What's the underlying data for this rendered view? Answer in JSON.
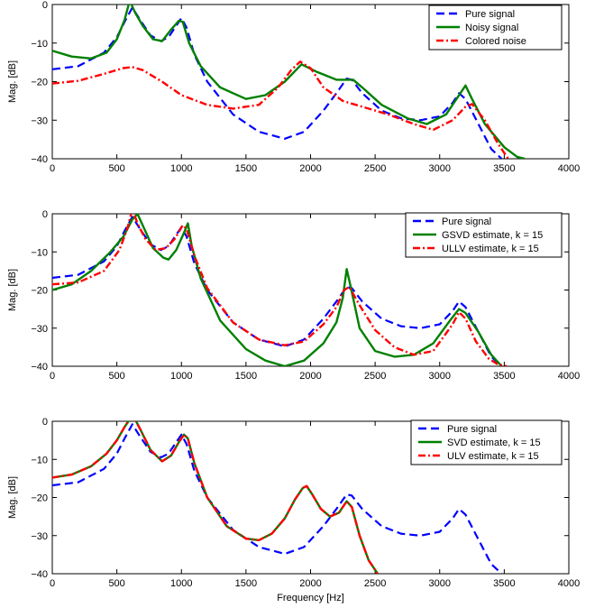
{
  "chart_data": [
    {
      "type": "line",
      "xlabel": "",
      "ylabel": "Mag. [dB]",
      "xlim": [
        0,
        4000
      ],
      "ylim": [
        -40,
        0
      ],
      "xticks": [
        0,
        500,
        1000,
        1500,
        2000,
        2500,
        3000,
        3500,
        4000
      ],
      "yticks": [
        0,
        -10,
        -20,
        -30,
        -40
      ],
      "xtick_labels": [
        "0",
        "500",
        "1000",
        "1500",
        "2000",
        "2500",
        "3000",
        "3500",
        "4000"
      ],
      "ytick_labels": [
        "0",
        "−10",
        "−20",
        "−30",
        "−40"
      ],
      "grid": false,
      "legend": "top-right",
      "series": [
        {
          "name": "Pure signal",
          "color": "#0000ff",
          "style": "dashed",
          "x": [
            0,
            200,
            400,
            500,
            560,
            620,
            680,
            760,
            840,
            900,
            960,
            1000,
            1040,
            1100,
            1200,
            1400,
            1600,
            1800,
            1950,
            2100,
            2200,
            2280,
            2320,
            2400,
            2550,
            2700,
            2850,
            3000,
            3100,
            3150,
            3200,
            3300,
            3400,
            3480
          ],
          "y": [
            -16.8,
            -16,
            -12.5,
            -8.5,
            -4.5,
            -0.8,
            -4,
            -8,
            -9.5,
            -8.5,
            -5.5,
            -3.5,
            -6,
            -13,
            -20,
            -28.5,
            -33,
            -34.8,
            -33,
            -27.5,
            -23,
            -19.2,
            -19.5,
            -23,
            -27.5,
            -29.5,
            -30,
            -29,
            -25.5,
            -23,
            -24.5,
            -31,
            -37.5,
            -40
          ]
        },
        {
          "name": "Noisy signal",
          "color": "#008000",
          "style": "solid",
          "x": [
            0,
            150,
            300,
            420,
            500,
            560,
            600,
            640,
            700,
            780,
            850,
            920,
            980,
            1010,
            1060,
            1150,
            1300,
            1500,
            1650,
            1800,
            1930,
            2050,
            2200,
            2330,
            2400,
            2550,
            2750,
            2900,
            3050,
            3150,
            3200,
            3250,
            3350,
            3500,
            3600,
            3660
          ],
          "y": [
            -12,
            -13.5,
            -14,
            -12.5,
            -9,
            -4,
            1,
            -2,
            -5.5,
            -9,
            -9.5,
            -6.5,
            -4.2,
            -4.5,
            -10,
            -16,
            -21.5,
            -24.5,
            -23.5,
            -20,
            -15.5,
            -17.5,
            -19.5,
            -19.5,
            -21.5,
            -26,
            -29.5,
            -31,
            -28.5,
            -23.5,
            -21,
            -24.5,
            -31,
            -37,
            -39.5,
            -40
          ]
        },
        {
          "name": "Colored noise",
          "color": "#ff0000",
          "style": "dashdot",
          "x": [
            0,
            200,
            400,
            550,
            620,
            700,
            850,
            1000,
            1200,
            1400,
            1600,
            1750,
            1850,
            1920,
            2000,
            2100,
            2250,
            2400,
            2600,
            2800,
            2950,
            3100,
            3200,
            3250,
            3350,
            3450,
            3530
          ],
          "y": [
            -20.5,
            -19.8,
            -18,
            -16.5,
            -16.2,
            -17,
            -20,
            -23.5,
            -26,
            -27,
            -26,
            -21.5,
            -17,
            -14.8,
            -16.5,
            -21.5,
            -25,
            -26.5,
            -28.5,
            -31,
            -32.5,
            -30,
            -26.5,
            -25.8,
            -30,
            -36,
            -40
          ]
        }
      ],
      "legend_entries": [
        "Pure signal",
        "Noisy signal",
        "Colored noise"
      ]
    },
    {
      "type": "line",
      "xlabel": "",
      "ylabel": "Mag. [dB]",
      "xlim": [
        0,
        4000
      ],
      "ylim": [
        -40,
        0
      ],
      "xticks": [
        0,
        500,
        1000,
        1500,
        2000,
        2500,
        3000,
        3500,
        4000
      ],
      "yticks": [
        0,
        -10,
        -20,
        -30,
        -40
      ],
      "xtick_labels": [
        "0",
        "500",
        "1000",
        "1500",
        "2000",
        "2500",
        "3000",
        "3500",
        "4000"
      ],
      "ytick_labels": [
        "0",
        "−10",
        "−20",
        "−30",
        "−40"
      ],
      "grid": false,
      "legend": "top-right",
      "series": [
        {
          "name": "Pure signal",
          "color": "#0000ff",
          "style": "dashed",
          "x": [
            0,
            200,
            400,
            500,
            560,
            620,
            680,
            760,
            840,
            900,
            960,
            1000,
            1040,
            1100,
            1200,
            1400,
            1600,
            1800,
            1950,
            2100,
            2200,
            2280,
            2320,
            2400,
            2550,
            2700,
            2850,
            3000,
            3100,
            3150,
            3200,
            3300,
            3400,
            3480
          ],
          "y": [
            -16.8,
            -16,
            -12.5,
            -8.5,
            -4.5,
            -0.8,
            -4,
            -8,
            -9.5,
            -8.5,
            -5.5,
            -3.5,
            -6,
            -13,
            -20,
            -28.5,
            -33,
            -34.8,
            -33,
            -27.5,
            -23,
            -19.2,
            -19.5,
            -23,
            -27.5,
            -29.5,
            -30,
            -29,
            -25.5,
            -23,
            -24.5,
            -31,
            -37.5,
            -40
          ]
        },
        {
          "name": "GSVD estimate, k = 15",
          "color": "#008000",
          "style": "solid",
          "x": [
            0,
            150,
            300,
            450,
            550,
            620,
            660,
            700,
            780,
            860,
            900,
            960,
            1020,
            1050,
            1080,
            1150,
            1300,
            1500,
            1650,
            1800,
            1950,
            2100,
            2200,
            2250,
            2280,
            2310,
            2380,
            2500,
            2650,
            2800,
            2950,
            3080,
            3150,
            3200,
            3300,
            3400,
            3480
          ],
          "y": [
            -20,
            -18.5,
            -15,
            -10,
            -6,
            -1.5,
            0,
            -3,
            -9,
            -11.5,
            -12,
            -9.5,
            -5,
            -2.5,
            -8.5,
            -17,
            -28,
            -35.5,
            -38.5,
            -40,
            -38.5,
            -34,
            -28.5,
            -22,
            -14.5,
            -19,
            -30,
            -36,
            -37.5,
            -37,
            -34,
            -28,
            -25,
            -26,
            -31,
            -37,
            -40
          ]
        },
        {
          "name": "ULLV estimate, k = 15",
          "color": "#ff0000",
          "style": "dashdot",
          "x": [
            0,
            200,
            400,
            520,
            580,
            620,
            660,
            720,
            800,
            880,
            950,
            1010,
            1040,
            1100,
            1200,
            1400,
            1600,
            1800,
            1950,
            2100,
            2200,
            2260,
            2300,
            2380,
            2500,
            2650,
            2800,
            2950,
            3100,
            3150,
            3200,
            3280,
            3380,
            3450,
            3520
          ],
          "y": [
            -18.5,
            -18,
            -15,
            -9.5,
            -4,
            1.2,
            -2.5,
            -6.5,
            -9.5,
            -9,
            -6.5,
            -3,
            -4,
            -11,
            -19.5,
            -28.5,
            -33,
            -34.5,
            -33.5,
            -29,
            -24.5,
            -20,
            -19.2,
            -24,
            -30.5,
            -35,
            -37,
            -36,
            -29,
            -25.8,
            -27.5,
            -33.5,
            -38,
            -39.5,
            -40
          ]
        }
      ],
      "legend_entries": [
        "Pure signal",
        "GSVD estimate, k = 15",
        "ULLV estimate, k = 15"
      ]
    },
    {
      "type": "line",
      "xlabel": "Frequency [Hz]",
      "ylabel": "Mag. [dB]",
      "xlim": [
        0,
        4000
      ],
      "ylim": [
        -40,
        0
      ],
      "xticks": [
        0,
        500,
        1000,
        1500,
        2000,
        2500,
        3000,
        3500,
        4000
      ],
      "yticks": [
        0,
        -10,
        -20,
        -30,
        -40
      ],
      "xtick_labels": [
        "0",
        "500",
        "1000",
        "1500",
        "2000",
        "2500",
        "3000",
        "3500",
        "4000"
      ],
      "ytick_labels": [
        "0",
        "−10",
        "−20",
        "−30",
        "−40"
      ],
      "grid": false,
      "legend": "top-right",
      "series": [
        {
          "name": "Pure signal",
          "color": "#0000ff",
          "style": "dashed",
          "x": [
            0,
            200,
            400,
            500,
            560,
            620,
            680,
            760,
            840,
            900,
            960,
            1000,
            1040,
            1100,
            1200,
            1400,
            1600,
            1800,
            1950,
            2100,
            2200,
            2280,
            2320,
            2400,
            2550,
            2700,
            2850,
            3000,
            3100,
            3150,
            3200,
            3300,
            3400,
            3480
          ],
          "y": [
            -16.8,
            -16,
            -12.5,
            -8.5,
            -4.5,
            -0.8,
            -4,
            -8,
            -9.5,
            -8.5,
            -5.5,
            -3.5,
            -6,
            -13,
            -20,
            -28.5,
            -33,
            -34.8,
            -33,
            -27.5,
            -23,
            -19.2,
            -19.5,
            -23,
            -27.5,
            -29.5,
            -30,
            -29,
            -25.5,
            -23,
            -24.5,
            -31,
            -37.5,
            -40
          ]
        },
        {
          "name": "SVD estimate, k = 15",
          "color": "#008000",
          "style": "solid",
          "x": [
            0,
            150,
            300,
            420,
            500,
            560,
            600,
            630,
            680,
            760,
            850,
            920,
            980,
            1020,
            1050,
            1100,
            1200,
            1350,
            1500,
            1600,
            1700,
            1800,
            1880,
            1940,
            1970,
            2010,
            2080,
            2150,
            2220,
            2280,
            2320,
            2380,
            2450,
            2520
          ],
          "y": [
            -14.8,
            -14,
            -11.8,
            -8.5,
            -5,
            -1.5,
            0.5,
            1.2,
            -2,
            -7.5,
            -10.5,
            -9,
            -5.5,
            -3.5,
            -4.5,
            -11,
            -20,
            -27.5,
            -30.8,
            -31.2,
            -29.5,
            -25.5,
            -20.5,
            -17.5,
            -17,
            -19,
            -23,
            -25,
            -24,
            -21,
            -22.5,
            -30,
            -36.5,
            -40
          ]
        },
        {
          "name": "ULV estimate, k = 15",
          "color": "#ff0000",
          "style": "dashdot",
          "x": [
            0,
            150,
            300,
            420,
            500,
            560,
            600,
            630,
            680,
            760,
            850,
            920,
            980,
            1020,
            1050,
            1100,
            1200,
            1350,
            1500,
            1600,
            1700,
            1800,
            1880,
            1940,
            1970,
            2010,
            2080,
            2150,
            2220,
            2280,
            2320,
            2380,
            2450,
            2520
          ],
          "y": [
            -14.8,
            -14,
            -11.8,
            -8.5,
            -5,
            -1.5,
            0.5,
            1.2,
            -2,
            -7.5,
            -10.5,
            -9,
            -5.5,
            -3.5,
            -4.5,
            -11,
            -20,
            -27.5,
            -30.8,
            -31.2,
            -29.5,
            -25.5,
            -20.5,
            -17.5,
            -17,
            -19,
            -23,
            -25,
            -24,
            -21,
            -22.5,
            -30,
            -36.5,
            -40
          ]
        }
      ],
      "legend_entries": [
        "Pure signal",
        "SVD estimate, k = 15",
        "ULV estimate, k = 15"
      ]
    }
  ]
}
